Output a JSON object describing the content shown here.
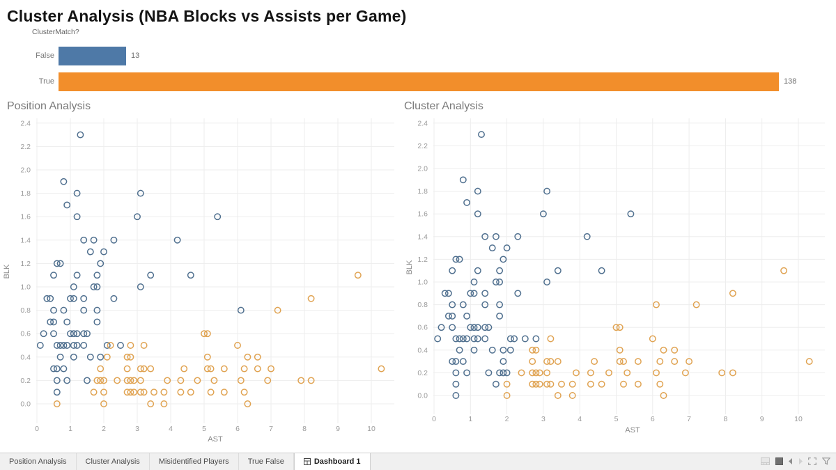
{
  "title": "Cluster Analysis (NBA Blocks vs Assists per Game)",
  "colors": {
    "bar_false": "#4e79a7",
    "bar_true": "#f28e2b",
    "point_blue": "#50708f",
    "point_orange": "#e0a352",
    "gridline": "#ededed",
    "tick_text": "#9b9b9b",
    "axis_label_text": "#8a8a8a",
    "panel_title_text": "#7b7b7b"
  },
  "chart_data": [
    {
      "type": "bar",
      "title": "ClusterMatch?",
      "orientation": "horizontal",
      "categories": [
        "False",
        "True"
      ],
      "values": [
        13,
        138
      ],
      "bar_colors": [
        "#4e79a7",
        "#f28e2b"
      ],
      "value_labels": [
        "13",
        "138"
      ],
      "xlim": [
        0,
        140
      ],
      "grid": false,
      "legend": "none"
    },
    {
      "type": "scatter",
      "title": "Position Analysis",
      "xlabel": "AST",
      "ylabel": "BLK",
      "xlim": [
        0,
        10.7
      ],
      "ylim": [
        0,
        2.4
      ],
      "x_ticks": [
        0,
        1,
        2,
        3,
        4,
        5,
        6,
        7,
        8,
        9,
        10
      ],
      "y_ticks": [
        0.0,
        0.2,
        0.4,
        0.6,
        0.8,
        1.0,
        1.2,
        1.4,
        1.6,
        1.8,
        2.0,
        2.2,
        2.4
      ],
      "grid": true,
      "legend": "none",
      "color_field": "pos",
      "note": "points shared with second scatter; color key B=blue O=orange"
    },
    {
      "type": "scatter",
      "title": "Cluster Analysis",
      "xlabel": "AST",
      "ylabel": "BLK",
      "xlim": [
        0,
        10.7
      ],
      "ylim": [
        0,
        2.4
      ],
      "x_ticks": [
        0,
        1,
        2,
        3,
        4,
        5,
        6,
        7,
        8,
        9,
        10
      ],
      "y_ticks": [
        0.0,
        0.2,
        0.4,
        0.6,
        0.8,
        1.0,
        1.2,
        1.4,
        1.6,
        1.8,
        2.0,
        2.2,
        2.4
      ],
      "grid": true,
      "legend": "none",
      "color_field": "cluster",
      "note": "same points as first scatter, colored by cluster"
    }
  ],
  "points": [
    [
      1.3,
      2.3,
      "B",
      "B"
    ],
    [
      0.8,
      1.9,
      "B",
      "B"
    ],
    [
      1.2,
      1.8,
      "B",
      "B"
    ],
    [
      3.1,
      1.8,
      "B",
      "B"
    ],
    [
      0.9,
      1.7,
      "B",
      "B"
    ],
    [
      1.2,
      1.6,
      "B",
      "B"
    ],
    [
      3.0,
      1.6,
      "B",
      "B"
    ],
    [
      5.4,
      1.6,
      "B",
      "B"
    ],
    [
      1.4,
      1.4,
      "B",
      "B"
    ],
    [
      1.7,
      1.4,
      "B",
      "B"
    ],
    [
      2.3,
      1.4,
      "B",
      "B"
    ],
    [
      4.2,
      1.4,
      "B",
      "B"
    ],
    [
      1.6,
      1.3,
      "B",
      "B"
    ],
    [
      2.0,
      1.3,
      "B",
      "B"
    ],
    [
      0.6,
      1.2,
      "B",
      "B"
    ],
    [
      0.7,
      1.2,
      "B",
      "B"
    ],
    [
      1.9,
      1.2,
      "B",
      "B"
    ],
    [
      0.5,
      1.1,
      "B",
      "B"
    ],
    [
      1.2,
      1.1,
      "B",
      "B"
    ],
    [
      1.8,
      1.1,
      "B",
      "B"
    ],
    [
      3.4,
      1.1,
      "B",
      "B"
    ],
    [
      4.6,
      1.1,
      "B",
      "B"
    ],
    [
      9.6,
      1.1,
      "O",
      "O"
    ],
    [
      1.1,
      1.0,
      "B",
      "B"
    ],
    [
      1.7,
      1.0,
      "B",
      "B"
    ],
    [
      1.8,
      1.0,
      "B",
      "B"
    ],
    [
      3.1,
      1.0,
      "B",
      "B"
    ],
    [
      0.3,
      0.9,
      "B",
      "B"
    ],
    [
      0.4,
      0.9,
      "B",
      "B"
    ],
    [
      1.0,
      0.9,
      "B",
      "B"
    ],
    [
      1.1,
      0.9,
      "B",
      "B"
    ],
    [
      1.4,
      0.9,
      "B",
      "B"
    ],
    [
      2.3,
      0.9,
      "B",
      "B"
    ],
    [
      8.2,
      0.9,
      "O",
      "O"
    ],
    [
      0.5,
      0.8,
      "B",
      "B"
    ],
    [
      0.8,
      0.8,
      "B",
      "B"
    ],
    [
      1.4,
      0.8,
      "B",
      "B"
    ],
    [
      1.8,
      0.8,
      "B",
      "B"
    ],
    [
      6.1,
      0.8,
      "B",
      "O"
    ],
    [
      7.2,
      0.8,
      "O",
      "O"
    ],
    [
      0.4,
      0.7,
      "B",
      "B"
    ],
    [
      0.5,
      0.7,
      "B",
      "B"
    ],
    [
      0.9,
      0.7,
      "B",
      "B"
    ],
    [
      1.8,
      0.7,
      "B",
      "B"
    ],
    [
      0.2,
      0.6,
      "B",
      "B"
    ],
    [
      0.5,
      0.6,
      "B",
      "B"
    ],
    [
      1.0,
      0.6,
      "B",
      "B"
    ],
    [
      1.1,
      0.6,
      "B",
      "B"
    ],
    [
      1.2,
      0.6,
      "B",
      "B"
    ],
    [
      1.4,
      0.6,
      "B",
      "B"
    ],
    [
      1.5,
      0.6,
      "B",
      "B"
    ],
    [
      5.0,
      0.6,
      "O",
      "O"
    ],
    [
      5.1,
      0.6,
      "O",
      "O"
    ],
    [
      0.1,
      0.5,
      "B",
      "B"
    ],
    [
      0.6,
      0.5,
      "B",
      "B"
    ],
    [
      0.7,
      0.5,
      "B",
      "B"
    ],
    [
      0.8,
      0.5,
      "B",
      "B"
    ],
    [
      0.9,
      0.5,
      "B",
      "B"
    ],
    [
      1.1,
      0.5,
      "B",
      "B"
    ],
    [
      1.2,
      0.5,
      "B",
      "B"
    ],
    [
      1.4,
      0.5,
      "B",
      "B"
    ],
    [
      2.1,
      0.5,
      "B",
      "B"
    ],
    [
      2.2,
      0.5,
      "O",
      "B"
    ],
    [
      2.5,
      0.5,
      "B",
      "B"
    ],
    [
      2.8,
      0.5,
      "O",
      "B"
    ],
    [
      3.2,
      0.5,
      "O",
      "O"
    ],
    [
      6.0,
      0.5,
      "O",
      "O"
    ],
    [
      0.7,
      0.4,
      "B",
      "B"
    ],
    [
      1.1,
      0.4,
      "B",
      "B"
    ],
    [
      1.6,
      0.4,
      "B",
      "B"
    ],
    [
      1.9,
      0.4,
      "B",
      "B"
    ],
    [
      2.1,
      0.4,
      "O",
      "B"
    ],
    [
      2.7,
      0.4,
      "O",
      "O"
    ],
    [
      2.8,
      0.4,
      "O",
      "O"
    ],
    [
      5.1,
      0.4,
      "O",
      "O"
    ],
    [
      6.3,
      0.4,
      "O",
      "O"
    ],
    [
      6.6,
      0.4,
      "O",
      "O"
    ],
    [
      0.5,
      0.3,
      "B",
      "B"
    ],
    [
      0.6,
      0.3,
      "B",
      "B"
    ],
    [
      0.8,
      0.3,
      "B",
      "B"
    ],
    [
      1.9,
      0.3,
      "O",
      "B"
    ],
    [
      2.7,
      0.3,
      "O",
      "O"
    ],
    [
      3.1,
      0.3,
      "O",
      "O"
    ],
    [
      3.2,
      0.3,
      "O",
      "O"
    ],
    [
      3.4,
      0.3,
      "O",
      "O"
    ],
    [
      4.4,
      0.3,
      "O",
      "O"
    ],
    [
      5.1,
      0.3,
      "O",
      "O"
    ],
    [
      5.2,
      0.3,
      "O",
      "O"
    ],
    [
      5.6,
      0.3,
      "O",
      "O"
    ],
    [
      6.2,
      0.3,
      "O",
      "O"
    ],
    [
      6.6,
      0.3,
      "O",
      "O"
    ],
    [
      7.0,
      0.3,
      "O",
      "O"
    ],
    [
      10.3,
      0.3,
      "O",
      "O"
    ],
    [
      0.6,
      0.2,
      "B",
      "B"
    ],
    [
      0.9,
      0.2,
      "B",
      "B"
    ],
    [
      1.5,
      0.2,
      "B",
      "B"
    ],
    [
      1.8,
      0.2,
      "O",
      "B"
    ],
    [
      1.9,
      0.2,
      "O",
      "B"
    ],
    [
      2.0,
      0.2,
      "O",
      "B"
    ],
    [
      2.4,
      0.2,
      "O",
      "O"
    ],
    [
      2.7,
      0.2,
      "O",
      "O"
    ],
    [
      2.8,
      0.2,
      "O",
      "O"
    ],
    [
      2.9,
      0.2,
      "O",
      "O"
    ],
    [
      3.1,
      0.2,
      "O",
      "O"
    ],
    [
      3.9,
      0.2,
      "O",
      "O"
    ],
    [
      4.3,
      0.2,
      "O",
      "O"
    ],
    [
      4.8,
      0.2,
      "O",
      "O"
    ],
    [
      5.3,
      0.2,
      "O",
      "O"
    ],
    [
      6.1,
      0.2,
      "O",
      "O"
    ],
    [
      6.9,
      0.2,
      "O",
      "O"
    ],
    [
      7.9,
      0.2,
      "O",
      "O"
    ],
    [
      8.2,
      0.2,
      "O",
      "O"
    ],
    [
      0.6,
      0.1,
      "B",
      "B"
    ],
    [
      1.7,
      0.1,
      "O",
      "B"
    ],
    [
      2.0,
      0.1,
      "O",
      "O"
    ],
    [
      2.7,
      0.1,
      "O",
      "O"
    ],
    [
      2.8,
      0.1,
      "O",
      "O"
    ],
    [
      2.9,
      0.1,
      "O",
      "O"
    ],
    [
      3.1,
      0.1,
      "O",
      "O"
    ],
    [
      3.2,
      0.1,
      "O",
      "O"
    ],
    [
      3.5,
      0.1,
      "O",
      "O"
    ],
    [
      3.8,
      0.1,
      "O",
      "O"
    ],
    [
      4.3,
      0.1,
      "O",
      "O"
    ],
    [
      4.6,
      0.1,
      "O",
      "O"
    ],
    [
      5.2,
      0.1,
      "O",
      "O"
    ],
    [
      5.6,
      0.1,
      "O",
      "O"
    ],
    [
      6.2,
      0.1,
      "O",
      "O"
    ],
    [
      0.6,
      0.0,
      "O",
      "B"
    ],
    [
      2.0,
      0.0,
      "O",
      "O"
    ],
    [
      3.4,
      0.0,
      "O",
      "O"
    ],
    [
      3.8,
      0.0,
      "O",
      "O"
    ],
    [
      6.3,
      0.0,
      "O",
      "O"
    ]
  ],
  "tabs": [
    {
      "label": "Position Analysis",
      "active": false
    },
    {
      "label": "Cluster Analysis",
      "active": false
    },
    {
      "label": "Misidentified Players",
      "active": false
    },
    {
      "label": "True False",
      "active": false
    },
    {
      "label": "Dashboard 1",
      "active": true,
      "icon": "dashboard-grid-icon"
    }
  ],
  "statusbar": {
    "icons": [
      "filmstrip-icon",
      "stop-square-icon",
      "prev-arrow-icon",
      "next-arrow-icon",
      "fullscreen-icon",
      "share-funnel-icon"
    ]
  }
}
